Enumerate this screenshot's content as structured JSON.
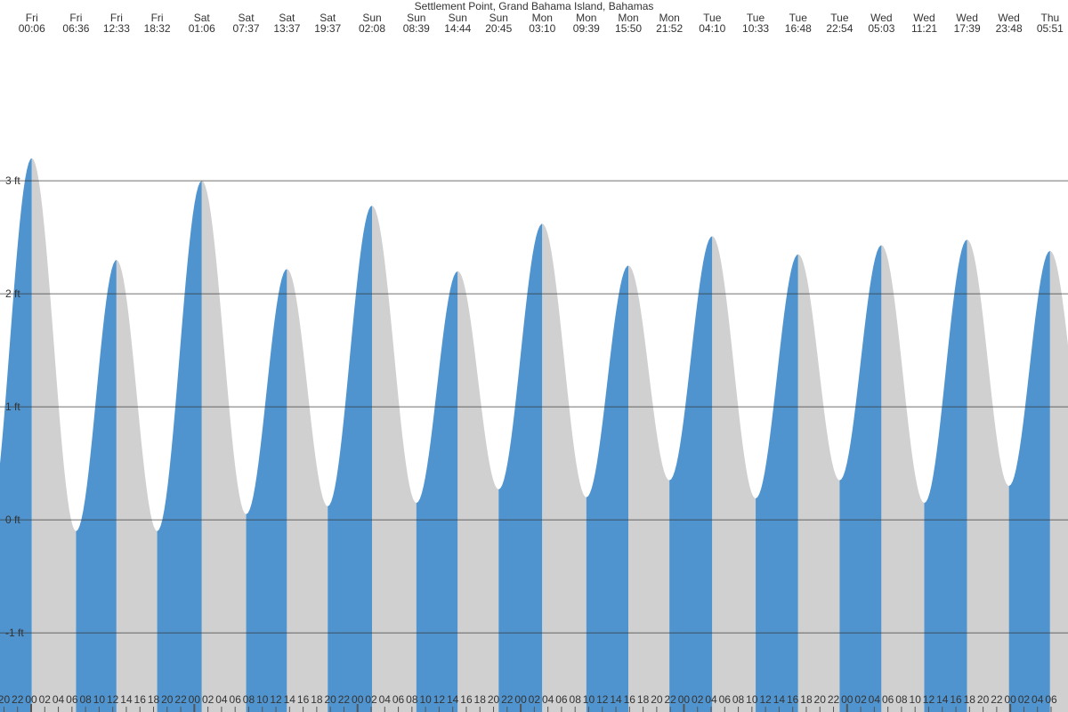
{
  "chart_data": {
    "type": "tide",
    "title": "Settlement Point, Grand Bahama Island, Bahamas",
    "days": [
      "Fri",
      "Fri",
      "Fri",
      "Fri",
      "Sat",
      "Sat",
      "Sat",
      "Sat",
      "Sun",
      "Sun",
      "Sun",
      "Sun",
      "Mon",
      "Mon",
      "Mon",
      "Mon",
      "Tue",
      "Tue",
      "Tue",
      "Tue",
      "Wed",
      "Wed",
      "Wed",
      "Wed",
      "Thu"
    ],
    "times": [
      "00:06",
      "06:36",
      "12:33",
      "18:32",
      "01:06",
      "07:37",
      "13:37",
      "19:37",
      "02:08",
      "08:39",
      "14:44",
      "20:45",
      "03:10",
      "09:39",
      "15:50",
      "21:52",
      "04:10",
      "10:33",
      "16:48",
      "22:54",
      "05:03",
      "11:21",
      "17:39",
      "23:48",
      "05:51"
    ],
    "values": [
      3.2,
      -0.1,
      2.3,
      -0.1,
      3.0,
      0.05,
      2.22,
      0.12,
      2.78,
      0.15,
      2.2,
      0.27,
      2.62,
      0.2,
      2.25,
      0.35,
      2.51,
      0.19,
      2.35,
      0.35,
      2.43,
      0.15,
      2.48,
      0.3,
      2.38
    ],
    "rising_color": "#4f94cf",
    "falling_color": "#d0d0d0",
    "ylim": [
      -1.7,
      4.6
    ],
    "yticks": [
      {
        "value": -1,
        "label": "-1 ft"
      },
      {
        "value": 0,
        "label": "0 ft"
      },
      {
        "value": 1,
        "label": "1 ft"
      },
      {
        "value": 2,
        "label": "2 ft"
      },
      {
        "value": 3,
        "label": "3 ft"
      }
    ],
    "grid": true,
    "hour_ticks": [
      "20",
      "22",
      "00",
      "02",
      "04",
      "06",
      "08",
      "10",
      "12",
      "14",
      "16",
      "18",
      "20",
      "22",
      "00",
      "02",
      "04",
      "06",
      "08",
      "10",
      "12",
      "14",
      "16",
      "18",
      "20",
      "22",
      "00",
      "02",
      "04",
      "06",
      "08",
      "10",
      "12",
      "14",
      "16",
      "18",
      "20",
      "22",
      "00",
      "02",
      "04",
      "06",
      "08",
      "10",
      "12",
      "14",
      "16",
      "18",
      "20",
      "22",
      "00",
      "02",
      "04",
      "06",
      "08",
      "10",
      "12",
      "14",
      "16",
      "18",
      "20",
      "22",
      "00",
      "02",
      "04",
      "06",
      "08",
      "10",
      "12",
      "14",
      "16",
      "18",
      "20",
      "22",
      "00",
      "02",
      "04",
      "06"
    ]
  }
}
